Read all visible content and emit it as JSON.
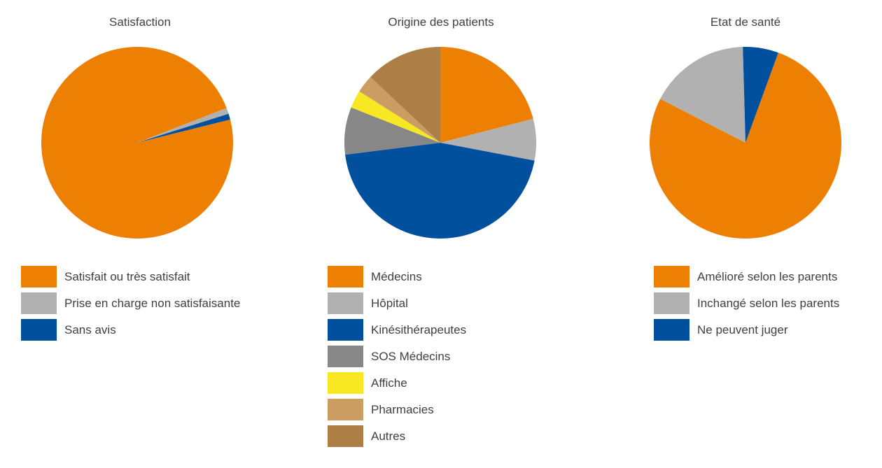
{
  "palette": {
    "orange": "#ed7f03",
    "light_gray": "#b1b1b1",
    "blue": "#01509e",
    "dark_gray": "#878787",
    "yellow": "#f7e823",
    "tan": "#cb9d62",
    "brown": "#ae7e47"
  },
  "chart_data": [
    {
      "type": "pie",
      "title": "Satisfaction",
      "start_angle_deg": 76,
      "direction": "clockwise",
      "slices": [
        {
          "label": "Satisfait ou très satisfait",
          "value": 98,
          "color": "#ed7f03"
        },
        {
          "label": "Prise en charge non satisfaisante",
          "value": 1,
          "color": "#b1b1b1"
        },
        {
          "label": "Sans avis",
          "value": 1,
          "color": "#01509e"
        }
      ]
    },
    {
      "type": "pie",
      "title": "Origine des patients",
      "start_angle_deg": 0,
      "direction": "clockwise",
      "slices": [
        {
          "label": "Médecins",
          "value": 21,
          "color": "#ed7f03"
        },
        {
          "label": "Hôpital",
          "value": 7,
          "color": "#b1b1b1"
        },
        {
          "label": "Kinésithérapeutes",
          "value": 45,
          "color": "#01509e"
        },
        {
          "label": "SOS Médecins",
          "value": 8,
          "color": "#878787"
        },
        {
          "label": "Affiche",
          "value": 3,
          "color": "#f7e823"
        },
        {
          "label": "Pharmacies",
          "value": 3,
          "color": "#cb9d62"
        },
        {
          "label": "Autres",
          "value": 13,
          "color": "#ae7e47"
        }
      ]
    },
    {
      "type": "pie",
      "title": "Etat de santé",
      "start_angle_deg": 20,
      "direction": "clockwise",
      "slices": [
        {
          "label": "Amélioré selon les parents",
          "value": 77,
          "color": "#ed7f03"
        },
        {
          "label": "Inchangé selon les parents",
          "value": 17,
          "color": "#b1b1b1"
        },
        {
          "label": "Ne peuvent juger",
          "value": 6,
          "color": "#01509e"
        }
      ]
    }
  ]
}
